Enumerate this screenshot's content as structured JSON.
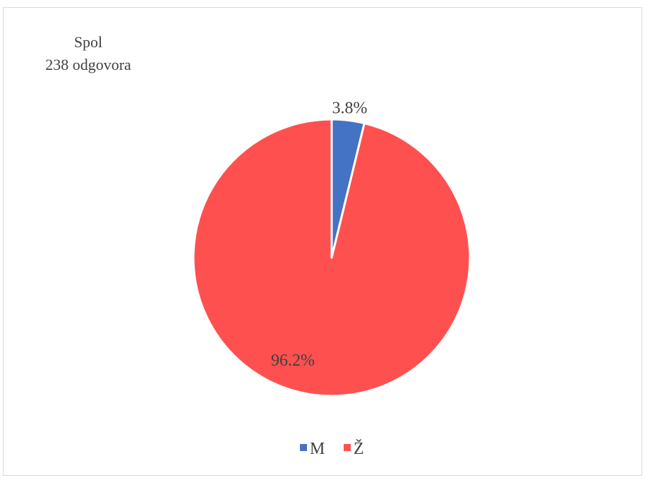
{
  "chart_data": {
    "type": "pie",
    "title": "Spol",
    "subtitle": "238 odgovora",
    "slices": [
      {
        "label": "M",
        "value": 3.8,
        "data_label": "3.8%",
        "color": "#4472c4"
      },
      {
        "label": "Ž",
        "value": 96.2,
        "data_label": "96.2%",
        "color": "#ff5050"
      }
    ],
    "legend_position": "bottom",
    "start_angle_deg": 0,
    "direction": "clockwise"
  }
}
